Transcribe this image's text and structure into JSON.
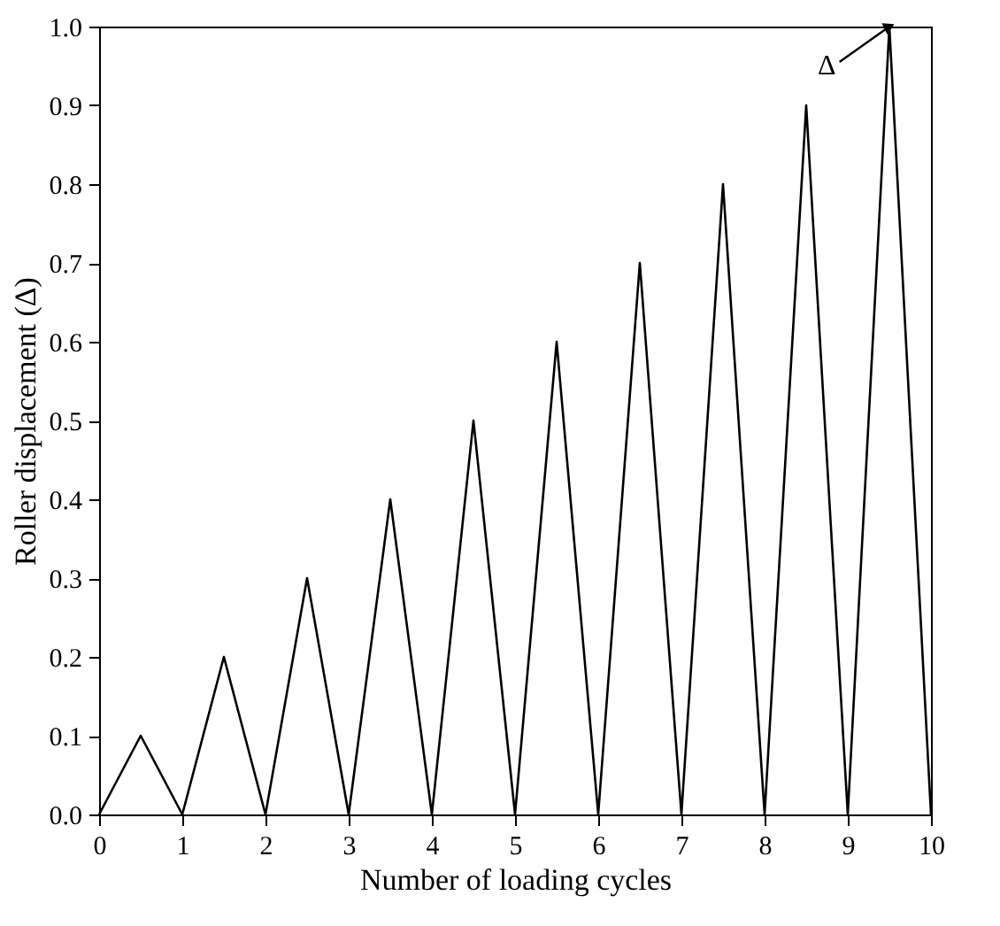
{
  "chart_data": {
    "type": "line",
    "xlabel": "Number of loading cycles",
    "ylabel": "Roller displacement (Δ)",
    "x": [
      0,
      0.5,
      1,
      1.5,
      2,
      2.5,
      3,
      3.5,
      4,
      4.5,
      5,
      5.5,
      6,
      6.5,
      7,
      7.5,
      8,
      8.5,
      9,
      9.5,
      10
    ],
    "series": [
      {
        "color": "#000000",
        "values": [
          0,
          0.1,
          0,
          0.2,
          0,
          0.3,
          0,
          0.4,
          0,
          0.5,
          0,
          0.6,
          0,
          0.7,
          0,
          0.8,
          0,
          0.9,
          0,
          1.0,
          0
        ]
      }
    ],
    "xlim": [
      0,
      10
    ],
    "xticks": [
      0,
      1,
      2,
      3,
      4,
      5,
      6,
      7,
      8,
      9,
      10
    ],
    "ylim": [
      0,
      1.0
    ],
    "yticks": [
      {
        "value": 0,
        "label": "0.0"
      },
      {
        "value": 0.1,
        "label": "0.1"
      },
      {
        "value": 0.2,
        "label": "0.2"
      },
      {
        "value": 0.3,
        "label": "0.3"
      },
      {
        "value": 0.4,
        "label": "0.4"
      },
      {
        "value": 0.5,
        "label": "0.5"
      },
      {
        "value": 0.6,
        "label": "0.6"
      },
      {
        "value": 0.7,
        "label": "0.7"
      },
      {
        "value": 0.8,
        "label": "0.8"
      },
      {
        "value": 0.9,
        "label": "0.9"
      },
      {
        "value": 1.0,
        "label": "1.0"
      }
    ],
    "annotations": [
      {
        "text": "Δ",
        "x": 9.5,
        "y": 1.0
      }
    ],
    "grid": false,
    "marker": "none",
    "line_style": "solid"
  }
}
